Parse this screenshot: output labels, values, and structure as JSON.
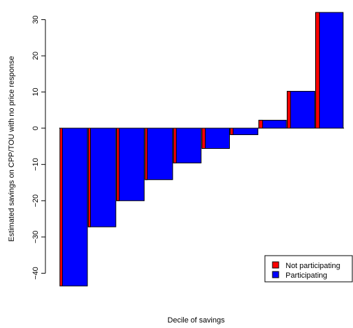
{
  "chart_data": {
    "type": "bar",
    "variant": "paired-width bars (narrow red overlaid at left edge of wide blue)",
    "title": "",
    "xlabel": "Decile of savings",
    "ylabel": "Estimated savings on CPP/TOU with no price response",
    "ylim": [
      -43.5,
      32.2
    ],
    "yticks": [
      -40,
      -30,
      -20,
      -10,
      0,
      10,
      20,
      30
    ],
    "ytick_labels": [
      "−40",
      "−30",
      "−20",
      "−10",
      "0",
      "10",
      "20",
      "30"
    ],
    "grid": false,
    "legend_position": "bottom-right",
    "series": [
      {
        "name": "Not participating",
        "color": "#ff0000",
        "values": [
          -43.5,
          -27.2,
          -20.0,
          -14.2,
          -9.6,
          -5.6,
          -1.8,
          2.2,
          10.2,
          32.0
        ]
      },
      {
        "name": "Participating",
        "color": "#0000ff",
        "values": [
          -43.5,
          -27.2,
          -20.0,
          -14.2,
          -9.6,
          -5.6,
          -1.8,
          2.2,
          10.2,
          32.0
        ]
      }
    ],
    "bar_share_not_participating": [
      0.09,
      0.08,
      0.09,
      0.08,
      0.1,
      0.12,
      0.1,
      0.14,
      0.12,
      0.14
    ]
  }
}
